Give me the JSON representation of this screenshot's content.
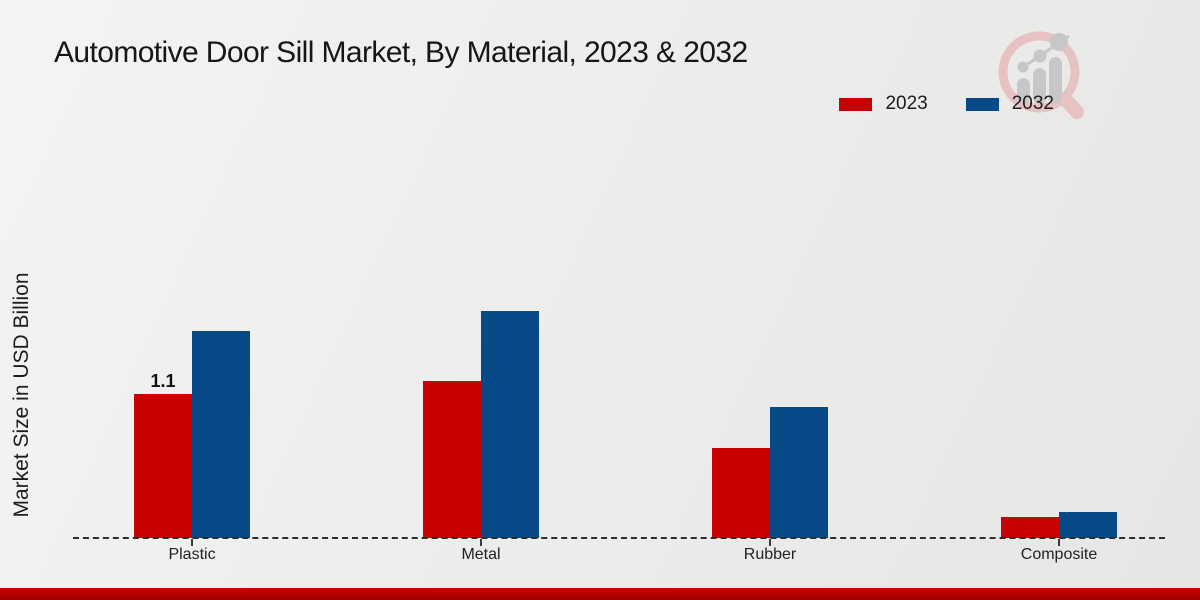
{
  "page": {
    "title": "Automotive Door Sill Market, By Material, 2023 & 2032"
  },
  "icons": {
    "watermark": "magnifier-trend-chart-logo"
  },
  "colors": {
    "series_2023": "#c80200",
    "series_2032": "#084a87",
    "footer_accent": "#b20202",
    "background": "#ebebeb",
    "watermark_ring": "#e6c2c2",
    "watermark_gray": "#c7c7ca"
  },
  "chart_data": {
    "type": "bar",
    "title": "Automotive Door Sill Market, By Material, 2023 & 2032",
    "categories": [
      "Plastic",
      "Metal",
      "Rubber",
      "Composite"
    ],
    "series": [
      {
        "name": "2023",
        "color": "#c80200",
        "values": [
          1.1,
          1.2,
          0.69,
          0.16
        ]
      },
      {
        "name": "2032",
        "color": "#084a87",
        "values": [
          1.58,
          1.73,
          1.0,
          0.2
        ]
      }
    ],
    "bar_labels": [
      {
        "series": "2023",
        "category": "Plastic",
        "text": "1.1"
      }
    ],
    "xlabel": "",
    "ylabel": "Market Size in USD Billion",
    "ylim": [
      0,
      2
    ],
    "grid": "off",
    "axis_line_style": "dashed-baseline-only",
    "legend_position": "top-right"
  }
}
